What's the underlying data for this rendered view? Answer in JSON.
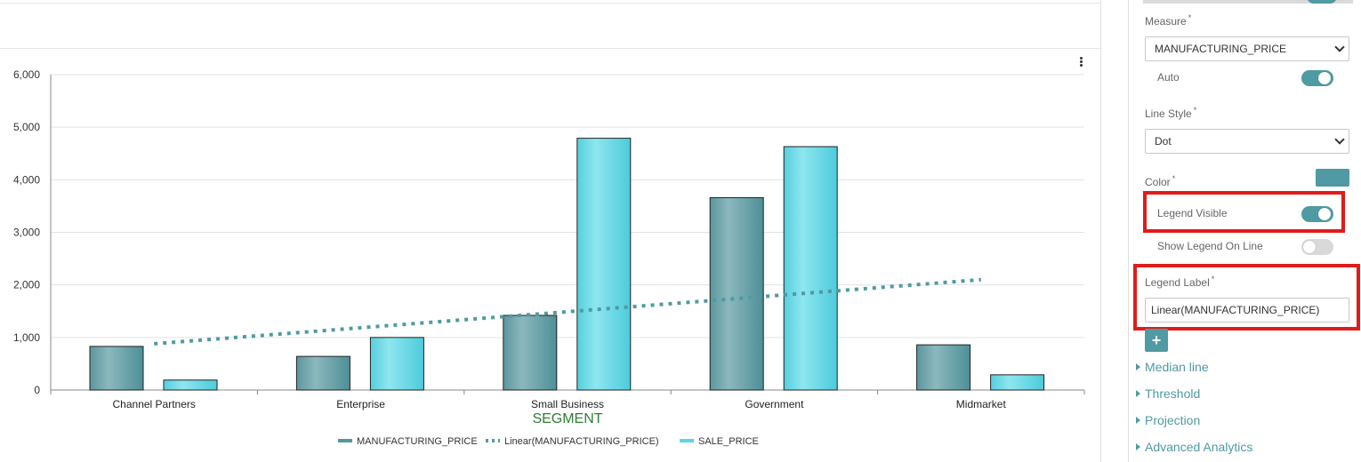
{
  "panel": {
    "measure_label": "Measure",
    "measure_value": "MANUFACTURING_PRICE",
    "auto_label": "Auto",
    "auto_on": true,
    "line_style_label": "Line Style",
    "line_style_value": "Dot",
    "color_label": "Color",
    "color_value": "#4f9aa3",
    "legend_visible_label": "Legend Visible",
    "legend_visible_on": true,
    "show_legend_on_line_label": "Show Legend On Line",
    "show_legend_on_line_on": false,
    "legend_label_label": "Legend Label",
    "legend_label_value": "Linear(MANUFACTURING_PRICE)",
    "add_icon": "plus-icon",
    "required_mark": "*",
    "sections": [
      "Median line",
      "Threshold",
      "Projection",
      "Advanced Analytics"
    ]
  },
  "chart_data": {
    "type": "bar",
    "xlabel": "SEGMENT",
    "ylabel": "",
    "ylim": [
      0,
      6000
    ],
    "yticks": [
      0,
      1000,
      2000,
      3000,
      4000,
      5000,
      6000
    ],
    "ytick_labels": [
      "0",
      "1,000",
      "2,000",
      "3,000",
      "4,000",
      "5,000",
      "6,000"
    ],
    "categories": [
      "Channel Partners",
      "Enterprise",
      "Small Business",
      "Government",
      "Midmarket"
    ],
    "series": [
      {
        "name": "MANUFACTURING_PRICE",
        "values": [
          830,
          640,
          1420,
          3660,
          860
        ],
        "color": "#5f9ea5"
      },
      {
        "name": "SALE_PRICE",
        "values": [
          190,
          1000,
          4790,
          4630,
          290
        ],
        "color": "#5ed6e4"
      }
    ],
    "trendline": {
      "name": "Linear(MANUFACTURING_PRICE)",
      "style": "dot",
      "start": 880,
      "end": 2100,
      "color": "#4f9aa3"
    },
    "legend": [
      "MANUFACTURING_PRICE",
      "Linear(MANUFACTURING_PRICE)",
      "SALE_PRICE"
    ],
    "legend_position": "bottom-center",
    "grid": true,
    "menu_icon": "kebab-icon"
  }
}
